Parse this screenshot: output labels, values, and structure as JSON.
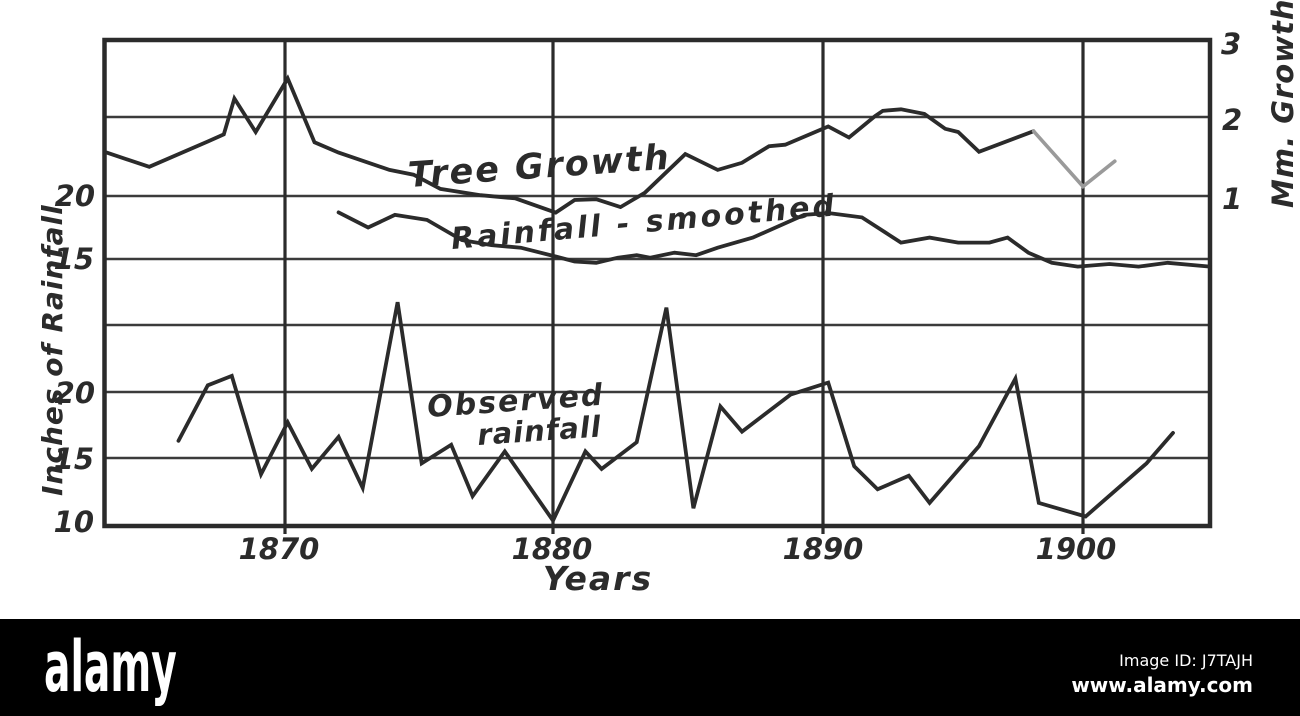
{
  "watermark": {
    "logo_text": "alamy",
    "image_id_label": "Image ID: J7TAJH",
    "url": "www.alamy.com",
    "bar_color": "#000000",
    "text_color": "#ffffff"
  },
  "chart_data": {
    "type": "line",
    "title": "",
    "xlabel": "Years",
    "ylabel_left": "Inches of Rainfall",
    "ylabel_right": "Mm. Growth",
    "ink_color": "#2b2b2b",
    "faded_color": "#9a9a9a",
    "grid": true,
    "x_range_years": [
      1863.2,
      1904.8
    ],
    "axes": {
      "x": {
        "label": "Years",
        "ticks": [
          "1870",
          "1880",
          "1890",
          "1900"
        ]
      },
      "right": {
        "label": "Mm. Growth",
        "ticks": [
          "3",
          "2",
          "1"
        ]
      },
      "left_upper": {
        "label": "Inches of Rainfall",
        "ticks": [
          "20",
          "15"
        ]
      },
      "left_lower": {
        "ticks": [
          "20",
          "15",
          "10"
        ]
      }
    },
    "labels": {
      "observed_line1": "Observed",
      "observed_line2": "rainfall"
    },
    "series": [
      {
        "name": "Tree Growth",
        "axis": "mm",
        "unit": "mm growth",
        "faded_tail_from_year": 1898,
        "points": [
          [
            1863.3,
            1.55
          ],
          [
            1864.9,
            1.37
          ],
          [
            1867.1,
            1.69
          ],
          [
            1867.7,
            1.78
          ],
          [
            1868.1,
            2.24
          ],
          [
            1868.9,
            1.81
          ],
          [
            1870.1,
            2.5
          ],
          [
            1871.1,
            1.68
          ],
          [
            1872.0,
            1.55
          ],
          [
            1873.9,
            1.33
          ],
          [
            1874.8,
            1.27
          ],
          [
            1875.8,
            1.09
          ],
          [
            1877.3,
            1.01
          ],
          [
            1878.6,
            0.97
          ],
          [
            1880.1,
            0.79
          ],
          [
            1880.8,
            0.95
          ],
          [
            1881.6,
            0.96
          ],
          [
            1882.5,
            0.86
          ],
          [
            1883.4,
            1.04
          ],
          [
            1884.9,
            1.53
          ],
          [
            1886.1,
            1.33
          ],
          [
            1887.0,
            1.42
          ],
          [
            1888.0,
            1.63
          ],
          [
            1888.6,
            1.65
          ],
          [
            1890.2,
            1.88
          ],
          [
            1891.0,
            1.74
          ],
          [
            1892.0,
            2.01
          ],
          [
            1892.3,
            2.08
          ],
          [
            1893.0,
            2.1
          ],
          [
            1893.9,
            2.04
          ],
          [
            1894.7,
            1.85
          ],
          [
            1895.2,
            1.81
          ],
          [
            1896.0,
            1.56
          ],
          [
            1898.1,
            1.82
          ],
          [
            1900.0,
            1.12
          ],
          [
            1901.2,
            1.44
          ]
        ]
      },
      {
        "name": "Rainfall - smoothed",
        "axis": "inches_upper",
        "unit": "inches of rainfall",
        "points": [
          [
            1872.0,
            18.7
          ],
          [
            1873.1,
            17.5
          ],
          [
            1874.1,
            18.5
          ],
          [
            1875.3,
            18.1
          ],
          [
            1876.6,
            16.5
          ],
          [
            1877.7,
            16.1
          ],
          [
            1878.8,
            15.9
          ],
          [
            1880.1,
            15.2
          ],
          [
            1880.8,
            14.8
          ],
          [
            1881.6,
            14.7
          ],
          [
            1882.4,
            15.1
          ],
          [
            1883.1,
            15.3
          ],
          [
            1883.6,
            15.1
          ],
          [
            1884.5,
            15.5
          ],
          [
            1885.3,
            15.3
          ],
          [
            1886.1,
            15.9
          ],
          [
            1887.4,
            16.7
          ],
          [
            1889.3,
            18.5
          ],
          [
            1890.2,
            18.65
          ],
          [
            1891.5,
            18.3
          ],
          [
            1892.4,
            17.1
          ],
          [
            1893.0,
            16.3
          ],
          [
            1894.1,
            16.7
          ],
          [
            1895.2,
            16.3
          ],
          [
            1896.4,
            16.3
          ],
          [
            1897.1,
            16.7
          ],
          [
            1897.9,
            15.5
          ],
          [
            1898.8,
            14.7
          ],
          [
            1899.8,
            14.4
          ],
          [
            1901.0,
            14.6
          ],
          [
            1902.1,
            14.4
          ],
          [
            1903.2,
            14.7
          ],
          [
            1904.8,
            14.4
          ]
        ]
      },
      {
        "name": "Observed rainfall",
        "axis": "inches_lower",
        "unit": "inches of rainfall",
        "points": [
          [
            1866.0,
            16.3
          ],
          [
            1867.1,
            20.5
          ],
          [
            1868.0,
            21.2
          ],
          [
            1869.1,
            13.8
          ],
          [
            1870.1,
            17.7
          ],
          [
            1871.0,
            14.2
          ],
          [
            1872.0,
            16.6
          ],
          [
            1872.9,
            12.8
          ],
          [
            1874.2,
            26.7
          ],
          [
            1875.1,
            14.6
          ],
          [
            1876.2,
            16.0
          ],
          [
            1877.0,
            12.2
          ],
          [
            1878.2,
            15.5
          ],
          [
            1880.0,
            10.4
          ],
          [
            1881.2,
            15.5
          ],
          [
            1881.8,
            14.2
          ],
          [
            1883.1,
            16.2
          ],
          [
            1884.2,
            26.3
          ],
          [
            1885.2,
            11.3
          ],
          [
            1886.2,
            18.9
          ],
          [
            1887.0,
            17.0
          ],
          [
            1888.8,
            19.8
          ],
          [
            1890.2,
            20.7
          ],
          [
            1891.2,
            14.4
          ],
          [
            1892.1,
            12.7
          ],
          [
            1893.3,
            13.7
          ],
          [
            1894.1,
            11.7
          ],
          [
            1896.0,
            15.9
          ],
          [
            1897.4,
            21.0
          ],
          [
            1898.3,
            11.7
          ],
          [
            1900.1,
            10.7
          ],
          [
            1902.4,
            14.6
          ],
          [
            1903.4,
            16.9
          ]
        ]
      }
    ]
  }
}
